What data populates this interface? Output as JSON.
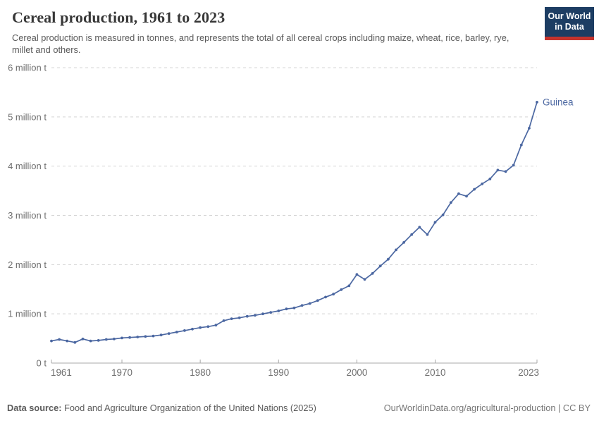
{
  "header": {
    "title": "Cereal production, 1961 to 2023",
    "subtitle": "Cereal production is measured in tonnes, and represents the total of all cereal crops including maize, wheat, rice, barley, rye, millet and others.",
    "logo": {
      "line1": "Our World",
      "line2": "in Data",
      "bg_color": "#1d3d63",
      "stripe_color": "#c5332d"
    }
  },
  "chart_data": {
    "type": "line",
    "title": "Cereal production, 1961 to 2023",
    "unit": "tonnes",
    "xlabel": "",
    "ylabel": "",
    "xlim": [
      1961,
      2023
    ],
    "ylim": [
      0,
      6000000
    ],
    "grid": "horizontal-dashed",
    "legend_position": "end-of-line-label",
    "colors": {
      "line": "#4b67a1",
      "gridline": "#d4d4d4",
      "axis": "#a8a8a8",
      "tick_label": "#6e6e6e"
    },
    "y_ticks": [
      {
        "value": 0,
        "label": "0 t"
      },
      {
        "value": 1000000,
        "label": "1 million t"
      },
      {
        "value": 2000000,
        "label": "2 million t"
      },
      {
        "value": 3000000,
        "label": "3 million t"
      },
      {
        "value": 4000000,
        "label": "4 million t"
      },
      {
        "value": 5000000,
        "label": "5 million t"
      },
      {
        "value": 6000000,
        "label": "6 million t"
      }
    ],
    "x_ticks": [
      {
        "value": 1961,
        "label": "1961"
      },
      {
        "value": 1970,
        "label": "1970"
      },
      {
        "value": 1980,
        "label": "1980"
      },
      {
        "value": 1990,
        "label": "1990"
      },
      {
        "value": 2000,
        "label": "2000"
      },
      {
        "value": 2010,
        "label": "2010"
      },
      {
        "value": 2023,
        "label": "2023"
      }
    ],
    "series": [
      {
        "name": "Guinea",
        "color": "#4b67a1",
        "x": [
          1961,
          1962,
          1963,
          1964,
          1965,
          1966,
          1967,
          1968,
          1969,
          1970,
          1971,
          1972,
          1973,
          1974,
          1975,
          1976,
          1977,
          1978,
          1979,
          1980,
          1981,
          1982,
          1983,
          1984,
          1985,
          1986,
          1987,
          1988,
          1989,
          1990,
          1991,
          1992,
          1993,
          1994,
          1995,
          1996,
          1997,
          1998,
          1999,
          2000,
          2001,
          2002,
          2003,
          2004,
          2005,
          2006,
          2007,
          2008,
          2009,
          2010,
          2011,
          2012,
          2013,
          2014,
          2015,
          2016,
          2017,
          2018,
          2019,
          2020,
          2021,
          2022,
          2023
        ],
        "values": [
          450000,
          480000,
          450000,
          420000,
          490000,
          450000,
          460000,
          480000,
          490000,
          510000,
          520000,
          530000,
          540000,
          550000,
          570000,
          600000,
          630000,
          660000,
          690000,
          720000,
          740000,
          770000,
          860000,
          900000,
          920000,
          950000,
          970000,
          1000000,
          1030000,
          1060000,
          1100000,
          1120000,
          1170000,
          1210000,
          1270000,
          1340000,
          1400000,
          1490000,
          1570000,
          1800000,
          1700000,
          1820000,
          1970000,
          2110000,
          2300000,
          2450000,
          2610000,
          2760000,
          2610000,
          2860000,
          3010000,
          3260000,
          3440000,
          3390000,
          3530000,
          3640000,
          3740000,
          3920000,
          3890000,
          4020000,
          4430000,
          4770000,
          5300000
        ]
      }
    ]
  },
  "footer": {
    "source_label": "Data source:",
    "source_text": "Food and Agriculture Organization of the United Nations (2025)",
    "link": "OurWorldinData.org/agricultural-production",
    "separator": " | ",
    "license": "CC BY"
  }
}
